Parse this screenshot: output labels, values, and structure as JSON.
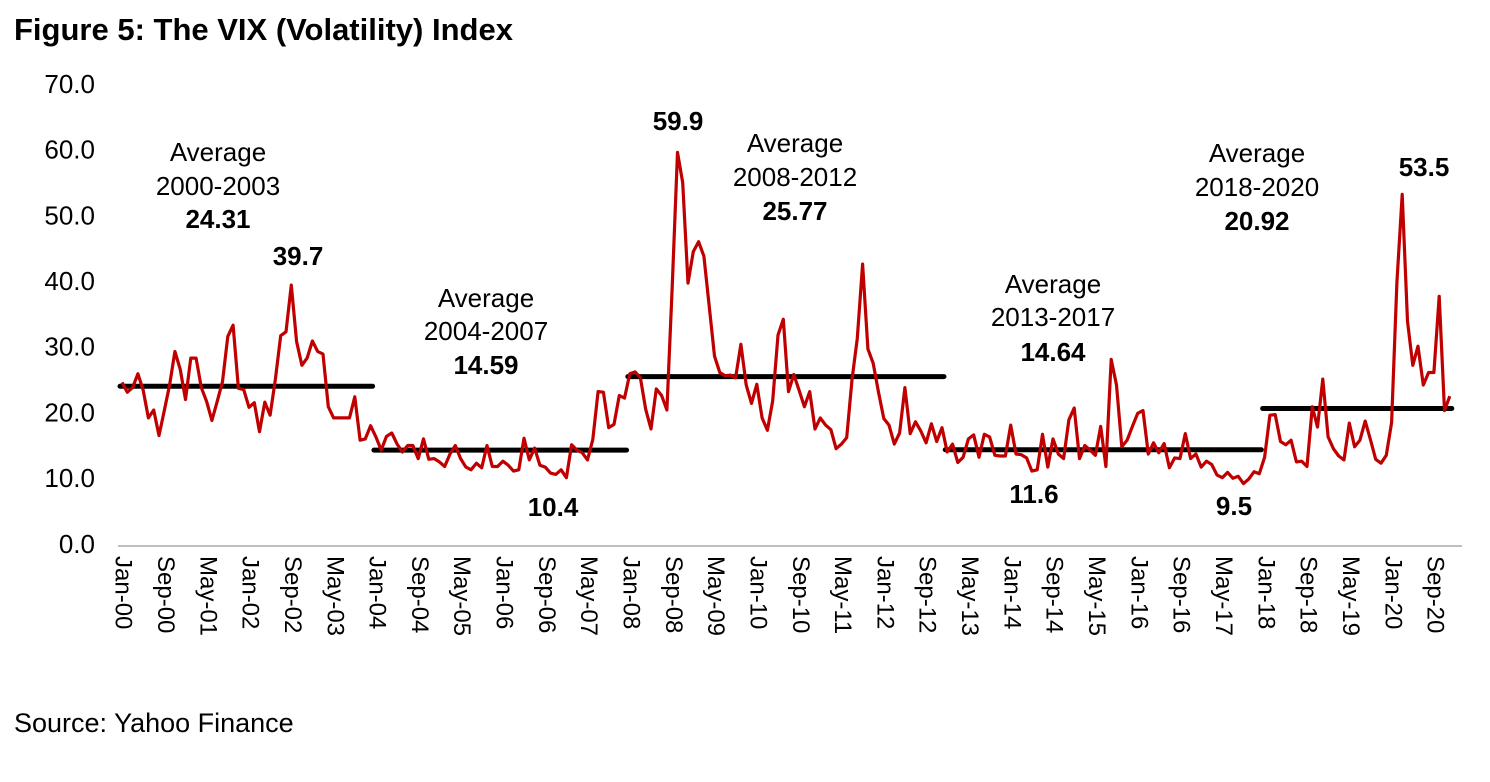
{
  "title": "Figure 5: The VIX (Volatility) Index",
  "source": "Source: Yahoo Finance",
  "chart_data": {
    "type": "line",
    "title": "Figure 5: The VIX (Volatility) Index",
    "xlabel": "",
    "ylabel": "",
    "ylim": [
      0,
      70
    ],
    "yticks": [
      "0.0",
      "10.0",
      "20.0",
      "30.0",
      "40.0",
      "50.0",
      "60.0",
      "70.0"
    ],
    "x_start": "Jan-00",
    "x_end": "Dec-20",
    "xticks": [
      "Jan-00",
      "Sep-00",
      "May-01",
      "Jan-02",
      "Sep-02",
      "May-03",
      "Jan-04",
      "Sep-04",
      "May-05",
      "Jan-06",
      "Sep-06",
      "May-07",
      "Jan-08",
      "Sep-08",
      "May-09",
      "Jan-10",
      "Sep-10",
      "May-11",
      "Jan-12",
      "Sep-12",
      "May-13",
      "Jan-14",
      "Sep-14",
      "May-15",
      "Jan-16",
      "Sep-16",
      "May-17",
      "Jan-18",
      "Sep-18",
      "May-19",
      "Jan-20",
      "Sep-20"
    ],
    "grid": false,
    "line_color": "#c00000",
    "average_color": "#000000",
    "values_by_year": {
      "2000": [
        24.9,
        23.4,
        24.1,
        26.2,
        23.7,
        19.5,
        20.7,
        16.8,
        20.6,
        24.5,
        29.6,
        26.9
      ],
      "2001": [
        22.3,
        28.6,
        28.6,
        24.1,
        22.0,
        19.1,
        22.0,
        25.0,
        31.9,
        33.6,
        24.0,
        23.8
      ],
      "2002": [
        21.1,
        21.8,
        17.4,
        21.9,
        19.9,
        25.4,
        32.0,
        32.6,
        39.7,
        31.1,
        27.5,
        28.6
      ],
      "2003": [
        31.2,
        29.6,
        29.2,
        21.2,
        19.5,
        19.5,
        19.5,
        19.5,
        22.7,
        16.1,
        16.3,
        18.3
      ],
      "2004": [
        16.6,
        14.6,
        16.7,
        17.2,
        15.5,
        14.3,
        15.3,
        15.3,
        13.3,
        16.3,
        13.2,
        13.3
      ],
      "2005": [
        12.8,
        12.1,
        14.0,
        15.3,
        13.3,
        12.0,
        11.6,
        12.6,
        11.9,
        15.3,
        12.1,
        12.1
      ],
      "2006": [
        12.9,
        12.3,
        11.4,
        11.6,
        16.4,
        13.1,
        14.9,
        12.3,
        12.0,
        11.1,
        10.9,
        11.6
      ],
      "2007": [
        10.4,
        15.4,
        14.6,
        14.2,
        13.1,
        16.2,
        23.5,
        23.4,
        18.0,
        18.5,
        22.9,
        22.5
      ],
      "2008": [
        26.2,
        26.5,
        25.6,
        20.8,
        17.8,
        23.9,
        22.9,
        20.7,
        39.4,
        59.9,
        55.3,
        40.0
      ],
      "2009": [
        44.8,
        46.3,
        44.1,
        36.5,
        28.9,
        26.4,
        25.9,
        26.0,
        25.6,
        30.7,
        24.5,
        21.7
      ],
      "2010": [
        24.6,
        19.5,
        17.6,
        22.1,
        32.1,
        34.5,
        23.5,
        26.1,
        23.7,
        21.2,
        23.5,
        17.8
      ],
      "2011": [
        19.5,
        18.4,
        17.7,
        14.8,
        15.5,
        16.5,
        25.3,
        31.6,
        42.9,
        30.0,
        27.8,
        23.4
      ],
      "2012": [
        19.4,
        18.4,
        15.5,
        17.2,
        24.1,
        17.1,
        18.9,
        17.5,
        15.7,
        18.6,
        15.9,
        18.0
      ],
      "2013": [
        14.3,
        15.5,
        12.7,
        13.5,
        16.3,
        16.9,
        13.5,
        17.0,
        16.6,
        13.8,
        13.7,
        13.7
      ],
      "2014": [
        18.4,
        14.0,
        13.9,
        13.4,
        11.4,
        11.6,
        17.0,
        12.0,
        16.3,
        14.0,
        13.3,
        19.2
      ],
      "2015": [
        21.0,
        13.3,
        15.3,
        14.6,
        13.8,
        18.2,
        12.1,
        28.4,
        24.5,
        15.1,
        16.1,
        18.2
      ],
      "2016": [
        20.2,
        20.6,
        14.0,
        15.7,
        14.2,
        15.6,
        11.9,
        13.4,
        13.3,
        17.1,
        13.3,
        14.0
      ],
      "2017": [
        12.0,
        12.9,
        12.4,
        10.8,
        10.4,
        11.2,
        10.3,
        10.6,
        9.5,
        10.2,
        11.3,
        11.0
      ],
      "2018": [
        13.5,
        19.9,
        20.0,
        15.9,
        15.4,
        16.1,
        12.8,
        12.9,
        12.1,
        21.2,
        18.1,
        25.4
      ],
      "2019": [
        16.6,
        14.8,
        13.7,
        13.1,
        18.7,
        15.1,
        16.1,
        19.0,
        16.2,
        13.2,
        12.6,
        13.8
      ],
      "2020": [
        18.8,
        40.1,
        53.5,
        34.2,
        27.5,
        30.4,
        24.5,
        26.4,
        26.4,
        38.0,
        20.6,
        22.8
      ]
    },
    "averages": [
      {
        "label": "Average",
        "period": "2000-2003",
        "value": "24.31",
        "from": "Jan-00",
        "to": "Dec-03"
      },
      {
        "label": "Average",
        "period": "2004-2007",
        "value": "14.59",
        "from": "Jan-04",
        "to": "Dec-07"
      },
      {
        "label": "Average",
        "period": "2008-2012",
        "value": "25.77",
        "from": "Jan-08",
        "to": "Dec-12"
      },
      {
        "label": "Average",
        "period": "2013-2017",
        "value": "14.64",
        "from": "Jan-13",
        "to": "Dec-17"
      },
      {
        "label": "Average",
        "period": "2018-2020",
        "value": "20.92",
        "from": "Jan-18",
        "to": "Dec-20"
      }
    ],
    "annotations": [
      "39.7",
      "10.4",
      "59.9",
      "11.6",
      "9.5",
      "53.5"
    ]
  }
}
